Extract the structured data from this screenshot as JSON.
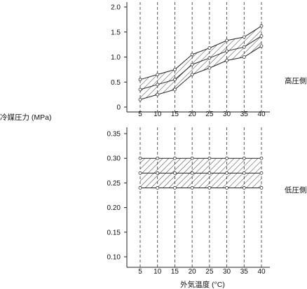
{
  "ylabel": "冷媒圧力 (MPa)",
  "xlabel": "外気温度 (°C)",
  "chart_data": [
    {
      "type": "line",
      "region": "高圧側",
      "x": [
        5,
        10,
        15,
        20,
        25,
        30,
        35,
        40
      ],
      "ylim": [
        0,
        2.0
      ],
      "yticks": [
        "0",
        "0.5",
        "1.0",
        "1.5",
        "2.0"
      ],
      "xticks": [
        "5",
        "10",
        "15",
        "20",
        "25",
        "30",
        "35",
        "40"
      ],
      "series": [
        {
          "values": [
            0.55,
            0.65,
            0.75,
            1.05,
            1.18,
            1.33,
            1.4,
            1.62
          ]
        },
        {
          "values": [
            0.35,
            0.45,
            0.55,
            0.85,
            0.98,
            1.12,
            1.2,
            1.42
          ]
        },
        {
          "values": [
            0.15,
            0.25,
            0.35,
            0.65,
            0.78,
            0.93,
            1.0,
            1.22
          ]
        }
      ],
      "band": "hatched between upper and lower series",
      "grid": "vertical dashed at each x tick"
    },
    {
      "type": "line",
      "region": "低圧側",
      "x": [
        5,
        10,
        15,
        20,
        25,
        30,
        35,
        40
      ],
      "ylim": [
        0.1,
        0.35
      ],
      "yticks": [
        "0.10",
        "0.15",
        "0.20",
        "0.25",
        "0.30",
        "0.35"
      ],
      "xticks": [
        "5",
        "10",
        "15",
        "20",
        "25",
        "30",
        "35",
        "40"
      ],
      "series": [
        {
          "values": [
            0.3,
            0.3,
            0.3,
            0.3,
            0.3,
            0.3,
            0.3,
            0.3
          ]
        },
        {
          "values": [
            0.27,
            0.27,
            0.27,
            0.27,
            0.27,
            0.27,
            0.27,
            0.27
          ]
        },
        {
          "values": [
            0.24,
            0.24,
            0.24,
            0.24,
            0.24,
            0.24,
            0.24,
            0.24
          ]
        }
      ],
      "band": "hatched between upper and lower series",
      "grid": "vertical dashed at each x tick"
    }
  ]
}
